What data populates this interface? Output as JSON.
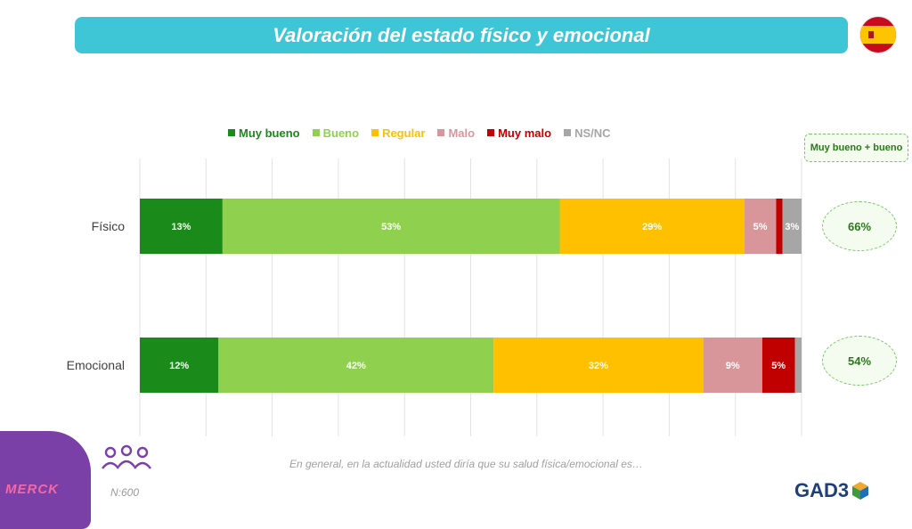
{
  "title": "Valoración del estado físico y emocional",
  "legend": [
    {
      "label": "Muy bueno",
      "color": "#1a8a1a"
    },
    {
      "label": "Bueno",
      "color": "#8fd14f"
    },
    {
      "label": "Regular",
      "color": "#ffc000"
    },
    {
      "label": "Malo",
      "color": "#d9969a"
    },
    {
      "label": "Muy malo",
      "color": "#c00000"
    },
    {
      "label": "NS/NC",
      "color": "#a6a6a6"
    }
  ],
  "chart_data": {
    "type": "bar",
    "orientation": "horizontal-stacked-100",
    "categories": [
      "Físico",
      "Emocional"
    ],
    "series": [
      {
        "name": "Muy bueno",
        "values": [
          13,
          12
        ],
        "labels": [
          "13%",
          "12%"
        ]
      },
      {
        "name": "Bueno",
        "values": [
          53,
          42
        ],
        "labels": [
          "53%",
          "42%"
        ]
      },
      {
        "name": "Regular",
        "values": [
          29,
          32
        ],
        "labels": [
          "29%",
          "32%"
        ]
      },
      {
        "name": "Malo",
        "values": [
          5,
          9
        ],
        "labels": [
          "5%",
          "9%"
        ]
      },
      {
        "name": "Muy malo",
        "values": [
          1,
          5
        ],
        "labels": [
          "",
          "5%"
        ]
      },
      {
        "name": "NS/NC",
        "values": [
          3,
          1
        ],
        "labels": [
          "3%",
          ""
        ]
      }
    ],
    "grid": true,
    "legend_position": "top"
  },
  "summary": {
    "header": "Muy bueno + bueno",
    "values": [
      "66%",
      "54%"
    ]
  },
  "question": "En general, en la actualidad usted diría que su salud física/emocional es…",
  "sample": "N:600",
  "brand_left": "MERCK",
  "brand_right": "GAD3"
}
